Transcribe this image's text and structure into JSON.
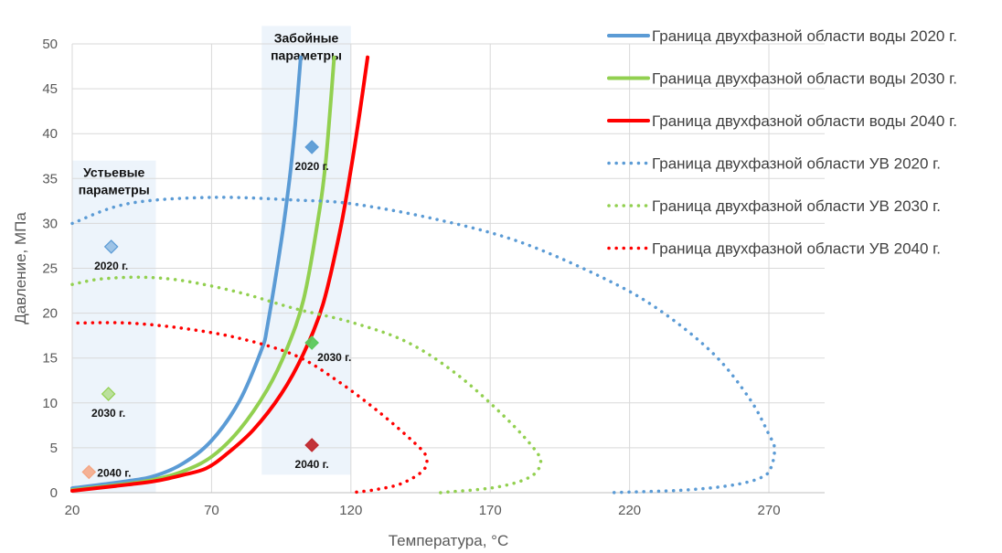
{
  "chart_data": {
    "type": "line",
    "xlabel": "Температура, °C",
    "ylabel": "Давление, МПа",
    "xlim": [
      20,
      290
    ],
    "ylim": [
      0,
      50
    ],
    "x_ticks": [
      "20",
      "70",
      "120",
      "170",
      "220",
      "270"
    ],
    "y_ticks": [
      "0",
      "5",
      "10",
      "15",
      "20",
      "25",
      "30",
      "35",
      "40",
      "45",
      "50"
    ],
    "grid": "vertical and horizontal",
    "legend_position": "top-right",
    "regions": [
      {
        "label": "Устьевые параметры",
        "x_range": [
          20,
          50
        ],
        "y_range": [
          0,
          37
        ]
      },
      {
        "label": "Забойные параметры",
        "x_range": [
          88,
          120
        ],
        "y_range": [
          2,
          52
        ]
      }
    ],
    "series": [
      {
        "name": "Граница двухфазной области воды 2020 г.",
        "color": "#5B9BD5",
        "style": "solid",
        "points": [
          [
            20,
            0.5
          ],
          [
            40,
            1.3
          ],
          [
            50,
            1.9
          ],
          [
            60,
            3.3
          ],
          [
            70,
            5.8
          ],
          [
            80,
            10.2
          ],
          [
            88,
            16.0
          ],
          [
            90,
            18.5
          ],
          [
            95,
            28.0
          ],
          [
            98,
            35.0
          ],
          [
            100,
            41.0
          ],
          [
            102,
            48.5
          ]
        ]
      },
      {
        "name": "Граница двухфазной области воды 2030 г.",
        "color": "#92D050",
        "style": "solid",
        "points": [
          [
            20,
            0.3
          ],
          [
            40,
            1.0
          ],
          [
            50,
            1.5
          ],
          [
            60,
            2.4
          ],
          [
            70,
            4.0
          ],
          [
            80,
            7.0
          ],
          [
            90,
            11.5
          ],
          [
            97,
            16.0
          ],
          [
            103,
            21.5
          ],
          [
            108,
            30.0
          ],
          [
            111,
            37.0
          ],
          [
            114,
            48.5
          ]
        ]
      },
      {
        "name": "Граница двухфазной области воды 2040 г.",
        "color": "#FF0000",
        "style": "solid",
        "points": [
          [
            20,
            0.2
          ],
          [
            40,
            0.9
          ],
          [
            50,
            1.3
          ],
          [
            60,
            2.0
          ],
          [
            68,
            2.7
          ],
          [
            75,
            4.2
          ],
          [
            85,
            7.0
          ],
          [
            95,
            11.0
          ],
          [
            103,
            15.5
          ],
          [
            110,
            21.0
          ],
          [
            116,
            29.0
          ],
          [
            120,
            36.0
          ],
          [
            123,
            42.0
          ],
          [
            126,
            48.5
          ]
        ]
      },
      {
        "name": "Граница двухфазной области УВ 2020 г.",
        "color": "#5B9BD5",
        "style": "dotted",
        "points": [
          [
            20,
            30.0
          ],
          [
            40,
            32.2
          ],
          [
            70,
            32.9
          ],
          [
            100,
            32.6
          ],
          [
            120,
            32.2
          ],
          [
            150,
            30.5
          ],
          [
            180,
            28.0
          ],
          [
            210,
            24.0
          ],
          [
            230,
            20.5
          ],
          [
            250,
            15.5
          ],
          [
            263,
            10.5
          ],
          [
            270,
            6.5
          ],
          [
            272,
            5.0
          ],
          [
            271,
            3.0
          ],
          [
            268,
            1.8
          ],
          [
            258,
            0.9
          ],
          [
            240,
            0.3
          ],
          [
            213,
            0.0
          ]
        ]
      },
      {
        "name": "Граница двухфазной области УВ 2030 г.",
        "color": "#92D050",
        "style": "dotted",
        "points": [
          [
            20,
            23.2
          ],
          [
            30,
            23.8
          ],
          [
            45,
            24.0
          ],
          [
            60,
            23.6
          ],
          [
            80,
            22.3
          ],
          [
            100,
            20.5
          ],
          [
            120,
            19.0
          ],
          [
            140,
            16.8
          ],
          [
            158,
            13.2
          ],
          [
            175,
            8.5
          ],
          [
            186,
            4.8
          ],
          [
            188,
            3.2
          ],
          [
            184,
            1.7
          ],
          [
            172,
            0.6
          ],
          [
            152,
            0.0
          ]
        ]
      },
      {
        "name": "Граница двухфазной области УВ 2040 г.",
        "color": "#FF0000",
        "style": "dotted",
        "points": [
          [
            22,
            18.9
          ],
          [
            40,
            18.9
          ],
          [
            60,
            18.3
          ],
          [
            80,
            17.2
          ],
          [
            100,
            15.3
          ],
          [
            115,
            12.5
          ],
          [
            130,
            9.0
          ],
          [
            143,
            5.5
          ],
          [
            147,
            4.0
          ],
          [
            146,
            2.5
          ],
          [
            138,
            1.0
          ],
          [
            128,
            0.3
          ],
          [
            120,
            0.0
          ]
        ]
      }
    ],
    "points": [
      {
        "label": "2020 г.",
        "x": 34,
        "y": 27.4,
        "color": "#5B9BD5",
        "opacity": 0.55
      },
      {
        "label": "2030 г.",
        "x": 33,
        "y": 11.0,
        "color": "#92D050",
        "opacity": 0.55
      },
      {
        "label": "2040 г.",
        "x": 26,
        "y": 2.3,
        "color": "#F4A582",
        "opacity": 0.85
      },
      {
        "label": "2020 г.",
        "x": 106,
        "y": 38.5,
        "color": "#5B9BD5",
        "opacity": 0.95
      },
      {
        "label": "2030 г.",
        "x": 106,
        "y": 16.7,
        "color": "#5BC85B",
        "opacity": 0.95
      },
      {
        "label": "2040 г.",
        "x": 106,
        "y": 5.3,
        "color": "#C0282D",
        "opacity": 0.95
      }
    ]
  }
}
